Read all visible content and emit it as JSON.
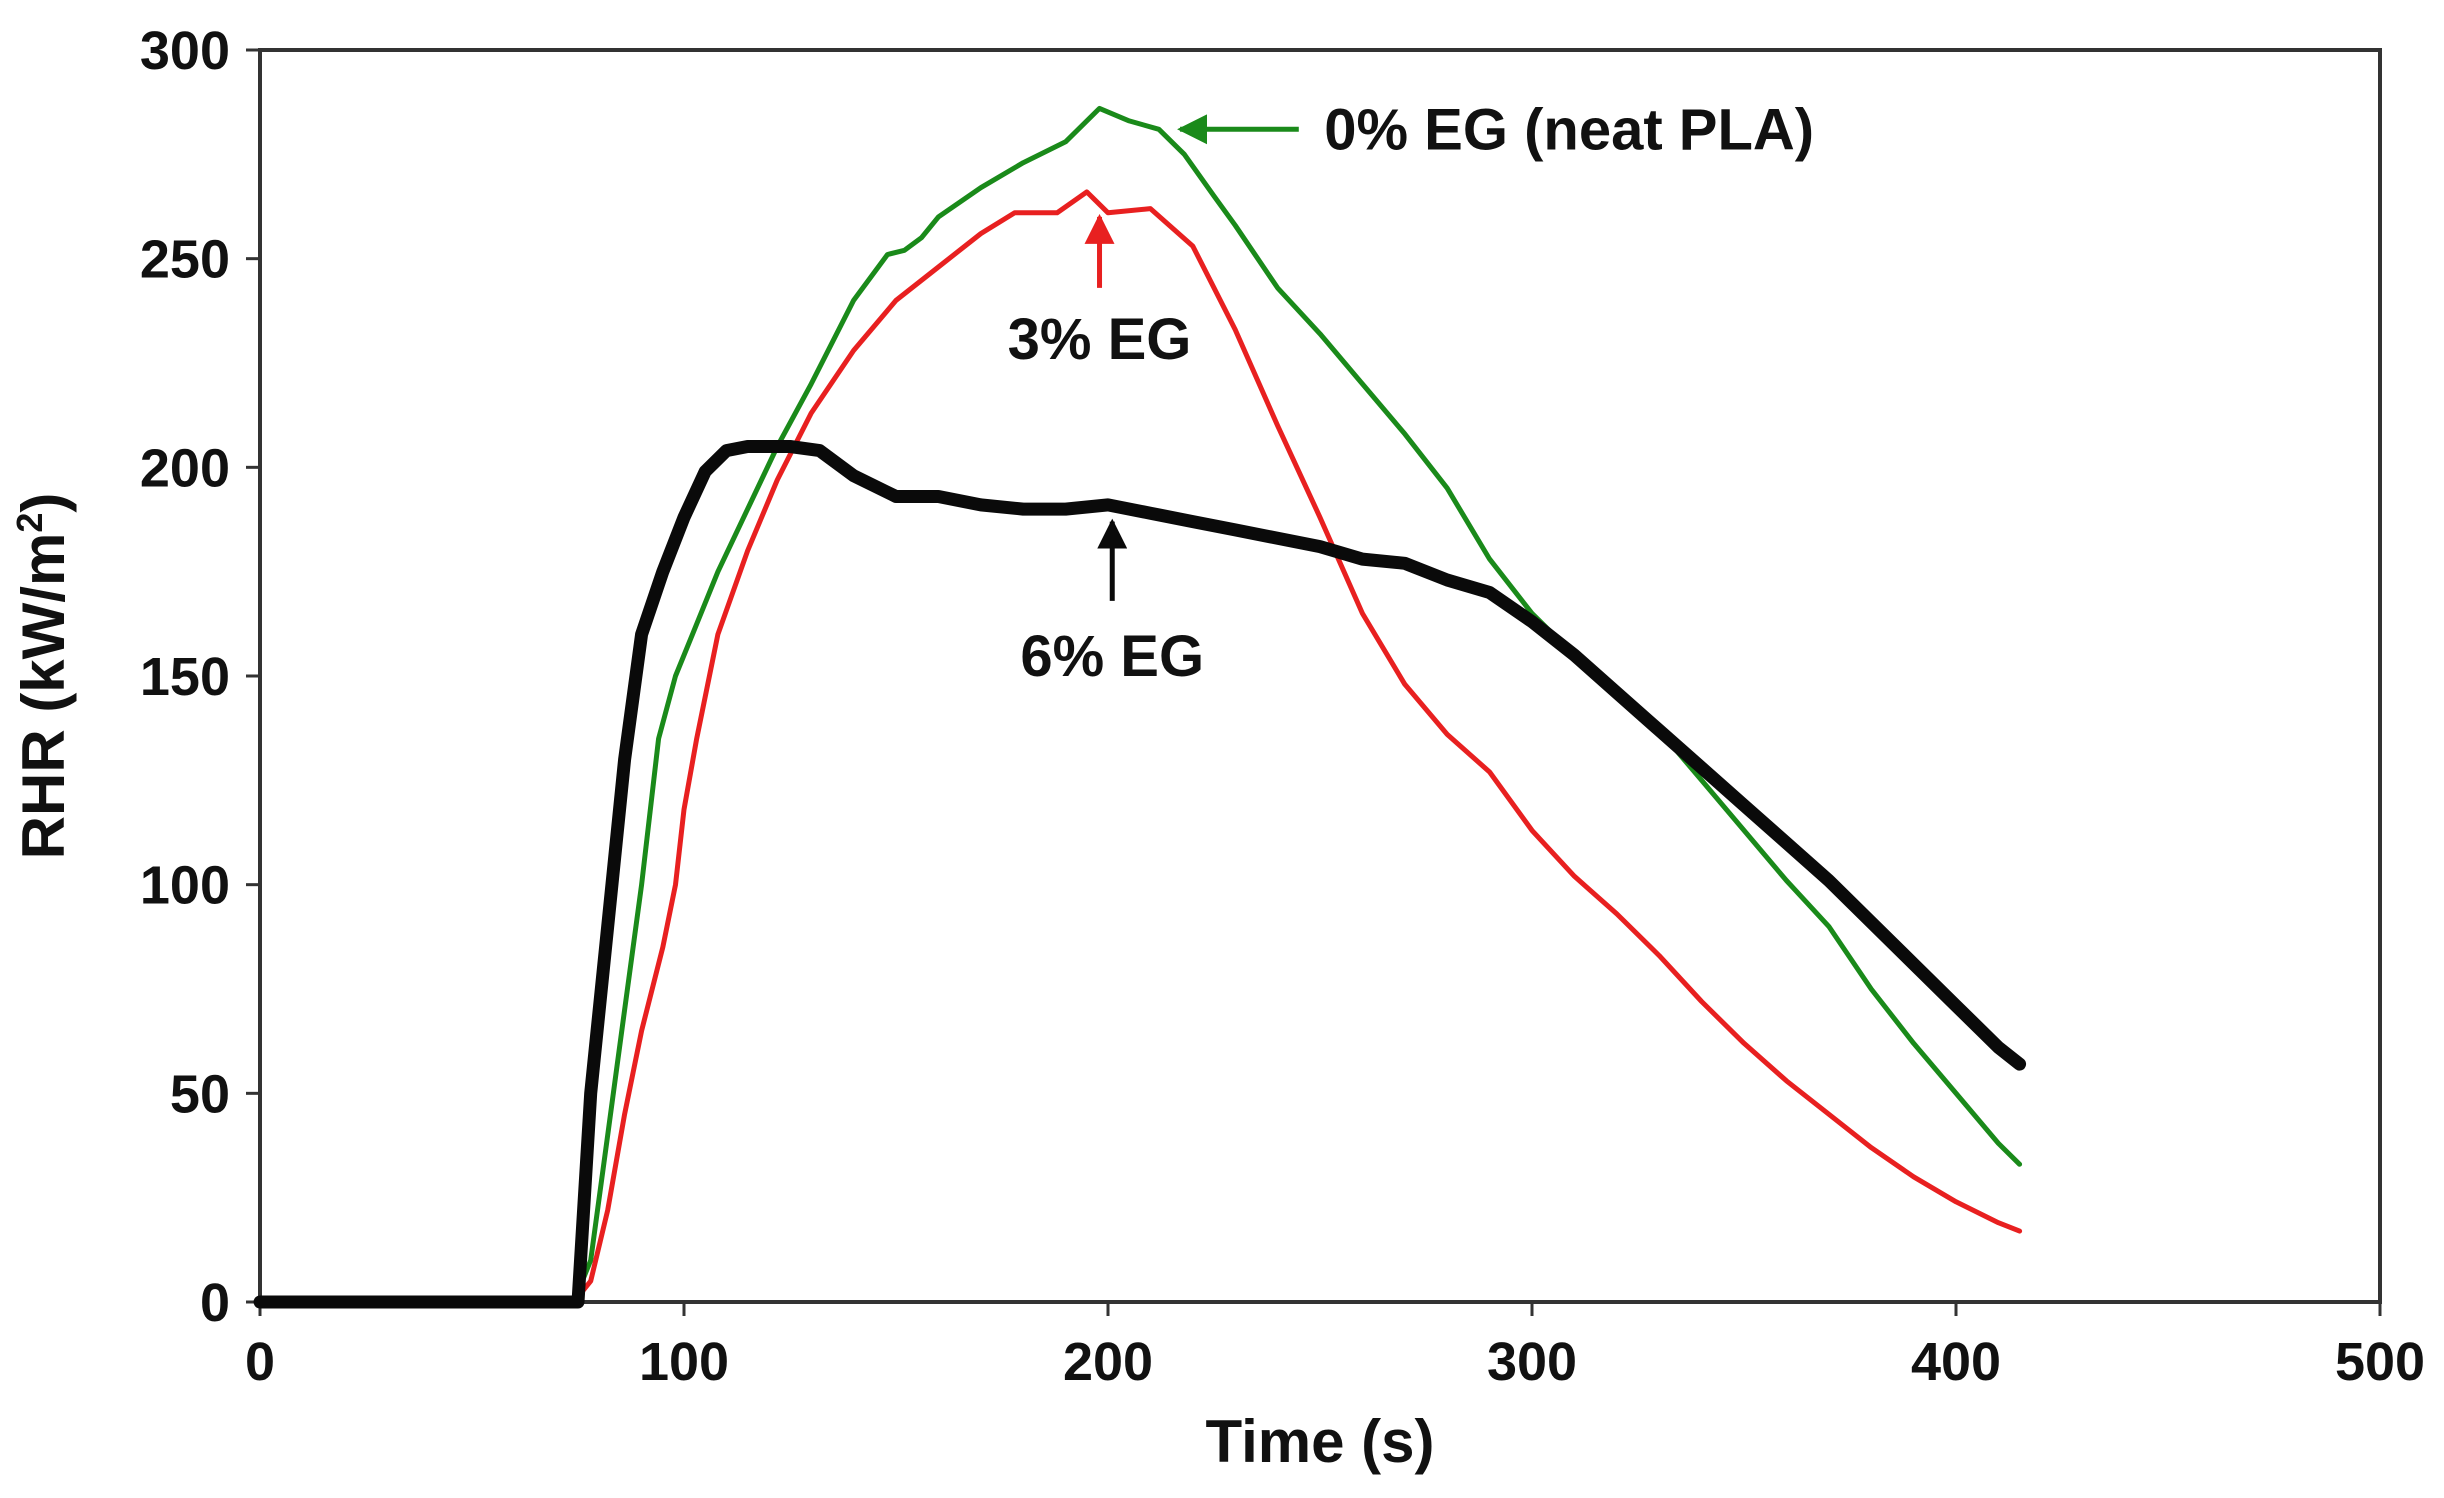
{
  "chart_data": {
    "type": "line",
    "title": "",
    "xlabel": "Time (s)",
    "ylabel_main": "RHR (kW/m",
    "ylabel_sup": "2",
    "ylabel_close": ")",
    "xlim": [
      0,
      500
    ],
    "ylim": [
      0,
      300
    ],
    "x_ticks": [
      "0",
      "100",
      "200",
      "300",
      "400",
      "500"
    ],
    "y_ticks": [
      "0",
      "50",
      "100",
      "150",
      "200",
      "250",
      "300"
    ],
    "grid": false,
    "legend": "none (inline annotations)",
    "series": [
      {
        "name": "0% EG (neat PLA)",
        "color": "#1a8a1a",
        "points": [
          [
            0,
            0
          ],
          [
            74,
            0
          ],
          [
            78,
            10
          ],
          [
            82,
            40
          ],
          [
            86,
            70
          ],
          [
            90,
            100
          ],
          [
            94,
            135
          ],
          [
            98,
            150
          ],
          [
            102,
            160
          ],
          [
            108,
            175
          ],
          [
            115,
            190
          ],
          [
            122,
            205
          ],
          [
            130,
            220
          ],
          [
            140,
            240
          ],
          [
            148,
            251
          ],
          [
            152,
            252
          ],
          [
            156,
            255
          ],
          [
            160,
            260
          ],
          [
            170,
            267
          ],
          [
            180,
            273
          ],
          [
            190,
            278
          ],
          [
            198,
            286
          ],
          [
            205,
            283
          ],
          [
            212,
            281
          ],
          [
            218,
            275
          ],
          [
            225,
            265
          ],
          [
            230,
            258
          ],
          [
            240,
            243
          ],
          [
            250,
            232
          ],
          [
            260,
            220
          ],
          [
            270,
            208
          ],
          [
            280,
            195
          ],
          [
            290,
            178
          ],
          [
            300,
            165
          ],
          [
            310,
            155
          ],
          [
            320,
            147
          ],
          [
            330,
            137
          ],
          [
            340,
            125
          ],
          [
            350,
            113
          ],
          [
            360,
            101
          ],
          [
            370,
            90
          ],
          [
            380,
            75
          ],
          [
            390,
            62
          ],
          [
            400,
            50
          ],
          [
            410,
            38
          ],
          [
            415,
            33
          ]
        ]
      },
      {
        "name": "3% EG",
        "color": "#e82020",
        "points": [
          [
            0,
            0
          ],
          [
            74,
            0
          ],
          [
            78,
            5
          ],
          [
            82,
            22
          ],
          [
            86,
            45
          ],
          [
            90,
            65
          ],
          [
            95,
            85
          ],
          [
            98,
            100
          ],
          [
            100,
            118
          ],
          [
            103,
            135
          ],
          [
            108,
            160
          ],
          [
            115,
            180
          ],
          [
            122,
            197
          ],
          [
            130,
            213
          ],
          [
            140,
            228
          ],
          [
            150,
            240
          ],
          [
            160,
            248
          ],
          [
            170,
            256
          ],
          [
            178,
            261
          ],
          [
            188,
            261
          ],
          [
            195,
            266
          ],
          [
            200,
            261
          ],
          [
            210,
            262
          ],
          [
            220,
            253
          ],
          [
            230,
            233
          ],
          [
            240,
            210
          ],
          [
            250,
            188
          ],
          [
            260,
            165
          ],
          [
            270,
            148
          ],
          [
            280,
            136
          ],
          [
            290,
            127
          ],
          [
            300,
            113
          ],
          [
            310,
            102
          ],
          [
            320,
            93
          ],
          [
            330,
            83
          ],
          [
            340,
            72
          ],
          [
            350,
            62
          ],
          [
            360,
            53
          ],
          [
            370,
            45
          ],
          [
            380,
            37
          ],
          [
            390,
            30
          ],
          [
            400,
            24
          ],
          [
            410,
            19
          ],
          [
            415,
            17
          ]
        ]
      },
      {
        "name": "6% EG",
        "color": "#0a0a0a",
        "points": [
          [
            0,
            0
          ],
          [
            72,
            0
          ],
          [
            75,
            0
          ],
          [
            78,
            50
          ],
          [
            82,
            90
          ],
          [
            86,
            130
          ],
          [
            90,
            160
          ],
          [
            95,
            175
          ],
          [
            100,
            188
          ],
          [
            105,
            199
          ],
          [
            110,
            204
          ],
          [
            115,
            205
          ],
          [
            125,
            205
          ],
          [
            132,
            204
          ],
          [
            140,
            198
          ],
          [
            150,
            193
          ],
          [
            160,
            193
          ],
          [
            170,
            191
          ],
          [
            180,
            190
          ],
          [
            190,
            190
          ],
          [
            200,
            191
          ],
          [
            210,
            189
          ],
          [
            220,
            187
          ],
          [
            230,
            185
          ],
          [
            240,
            183
          ],
          [
            250,
            181
          ],
          [
            260,
            178
          ],
          [
            270,
            177
          ],
          [
            280,
            173
          ],
          [
            290,
            170
          ],
          [
            300,
            163
          ],
          [
            310,
            155
          ],
          [
            320,
            146
          ],
          [
            330,
            137
          ],
          [
            340,
            128
          ],
          [
            350,
            119
          ],
          [
            360,
            110
          ],
          [
            370,
            101
          ],
          [
            380,
            91
          ],
          [
            390,
            81
          ],
          [
            400,
            71
          ],
          [
            410,
            61
          ],
          [
            415,
            57
          ]
        ]
      }
    ],
    "annotations": [
      {
        "text": "0% EG (neat PLA)",
        "series": "0% EG (neat PLA)",
        "color": "#1a8a1a",
        "arrow_to": [
          217,
          281
        ],
        "arrow_from": [
          245,
          281
        ]
      },
      {
        "text": "3% EG",
        "series": "3% EG",
        "color": "#e82020",
        "arrow_to": [
          198,
          260
        ],
        "arrow_from": [
          198,
          243
        ]
      },
      {
        "text": "6% EG",
        "series": "6% EG",
        "color": "#0a0a0a",
        "arrow_to": [
          201,
          187
        ],
        "arrow_from": [
          201,
          168
        ]
      }
    ]
  }
}
